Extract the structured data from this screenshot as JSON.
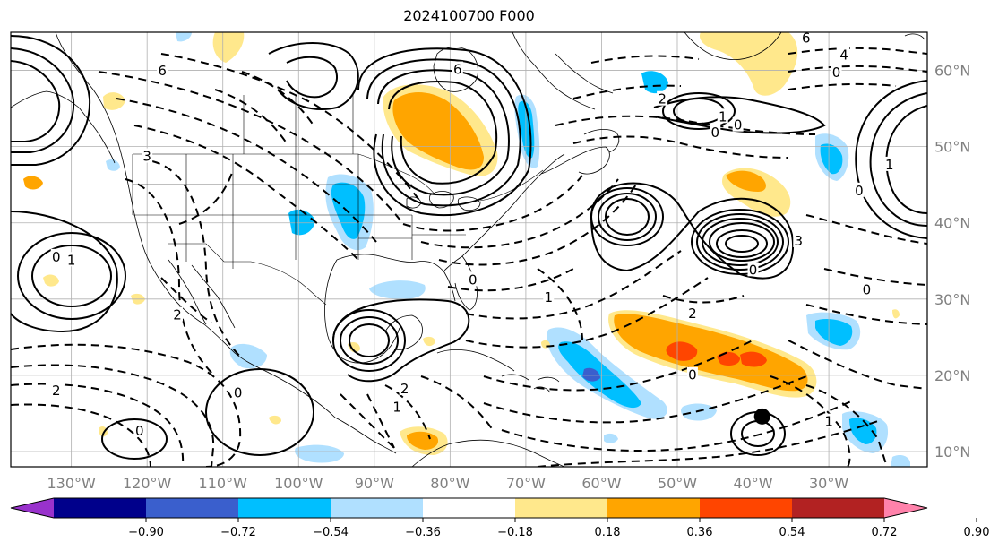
{
  "title": "2024100700 F000",
  "map": {
    "lon_range": [
      -138,
      -17
    ],
    "lat_range": [
      8,
      65
    ],
    "lon_ticks": [
      {
        "value": -130,
        "label": "130°W"
      },
      {
        "value": -120,
        "label": "120°W"
      },
      {
        "value": -110,
        "label": "110°W"
      },
      {
        "value": -100,
        "label": "100°W"
      },
      {
        "value": -90,
        "label": "90°W"
      },
      {
        "value": -80,
        "label": "80°W"
      },
      {
        "value": -70,
        "label": "70°W"
      },
      {
        "value": -60,
        "label": "60°W"
      },
      {
        "value": -50,
        "label": "50°W"
      },
      {
        "value": -40,
        "label": "40°W"
      },
      {
        "value": -30,
        "label": "30°W"
      }
    ],
    "lat_ticks": [
      {
        "value": 60,
        "label": "60°N"
      },
      {
        "value": 50,
        "label": "50°N"
      },
      {
        "value": 40,
        "label": "40°N"
      },
      {
        "value": 30,
        "label": "30°N"
      },
      {
        "value": 20,
        "label": "20°N"
      },
      {
        "value": 10,
        "label": "10°N"
      }
    ],
    "grid": true,
    "storm_marker": {
      "lon": -38.8,
      "lat": 14.6
    },
    "contour_labels": [
      {
        "text": "6",
        "lon": -79,
        "lat": 60
      },
      {
        "text": "6",
        "lon": -118,
        "lat": 59.8
      },
      {
        "text": "6",
        "lon": -33,
        "lat": 64.1
      },
      {
        "text": "4",
        "lon": -28,
        "lat": 61.9
      },
      {
        "text": "2",
        "lon": -52,
        "lat": 56.1
      },
      {
        "text": "0",
        "lon": -29,
        "lat": 59.6
      },
      {
        "text": "1",
        "lon": -44,
        "lat": 53.8
      },
      {
        "text": "0",
        "lon": -42,
        "lat": 52.7
      },
      {
        "text": "0",
        "lon": -45,
        "lat": 51.7
      },
      {
        "text": "0",
        "lon": -26,
        "lat": 44.1
      },
      {
        "text": "0",
        "lon": -132,
        "lat": 35.4
      },
      {
        "text": "1",
        "lon": -130,
        "lat": 35.0
      },
      {
        "text": "1",
        "lon": -67,
        "lat": 30.1
      },
      {
        "text": "0",
        "lon": -77,
        "lat": 32.4
      },
      {
        "text": "2",
        "lon": -116,
        "lat": 27.8
      },
      {
        "text": "2",
        "lon": -48,
        "lat": 28.0
      },
      {
        "text": "2",
        "lon": -132,
        "lat": 17.9
      },
      {
        "text": "2",
        "lon": -86,
        "lat": 18.1
      },
      {
        "text": "1",
        "lon": -87,
        "lat": 15.7
      },
      {
        "text": "0",
        "lon": -108,
        "lat": 17.6
      },
      {
        "text": "0",
        "lon": -121,
        "lat": 12.6
      },
      {
        "text": "0",
        "lon": -48,
        "lat": 19.9
      },
      {
        "text": "0",
        "lon": -25,
        "lat": 31.1
      },
      {
        "text": "3",
        "lon": -34,
        "lat": 37.5
      },
      {
        "text": "0",
        "lon": -40,
        "lat": 33.7
      },
      {
        "text": "1",
        "lon": -30,
        "lat": 13.8
      },
      {
        "text": "1",
        "lon": -22,
        "lat": 47.5
      },
      {
        "text": "3",
        "lon": -120,
        "lat": 48.6
      }
    ]
  },
  "colorbar": {
    "colors": [
      "#9932cc",
      "#00008b",
      "#3a5fcd",
      "#00bfff",
      "#b0e0ff",
      "#ffffff",
      "#ffe88c",
      "#ffa500",
      "#ff4500",
      "#b22222",
      "#ff82ab"
    ],
    "ticks": [
      "−0.90",
      "−0.72",
      "−0.54",
      "−0.36",
      "−0.18",
      "0.18",
      "0.36",
      "0.54",
      "0.72",
      "0.90"
    ]
  }
}
